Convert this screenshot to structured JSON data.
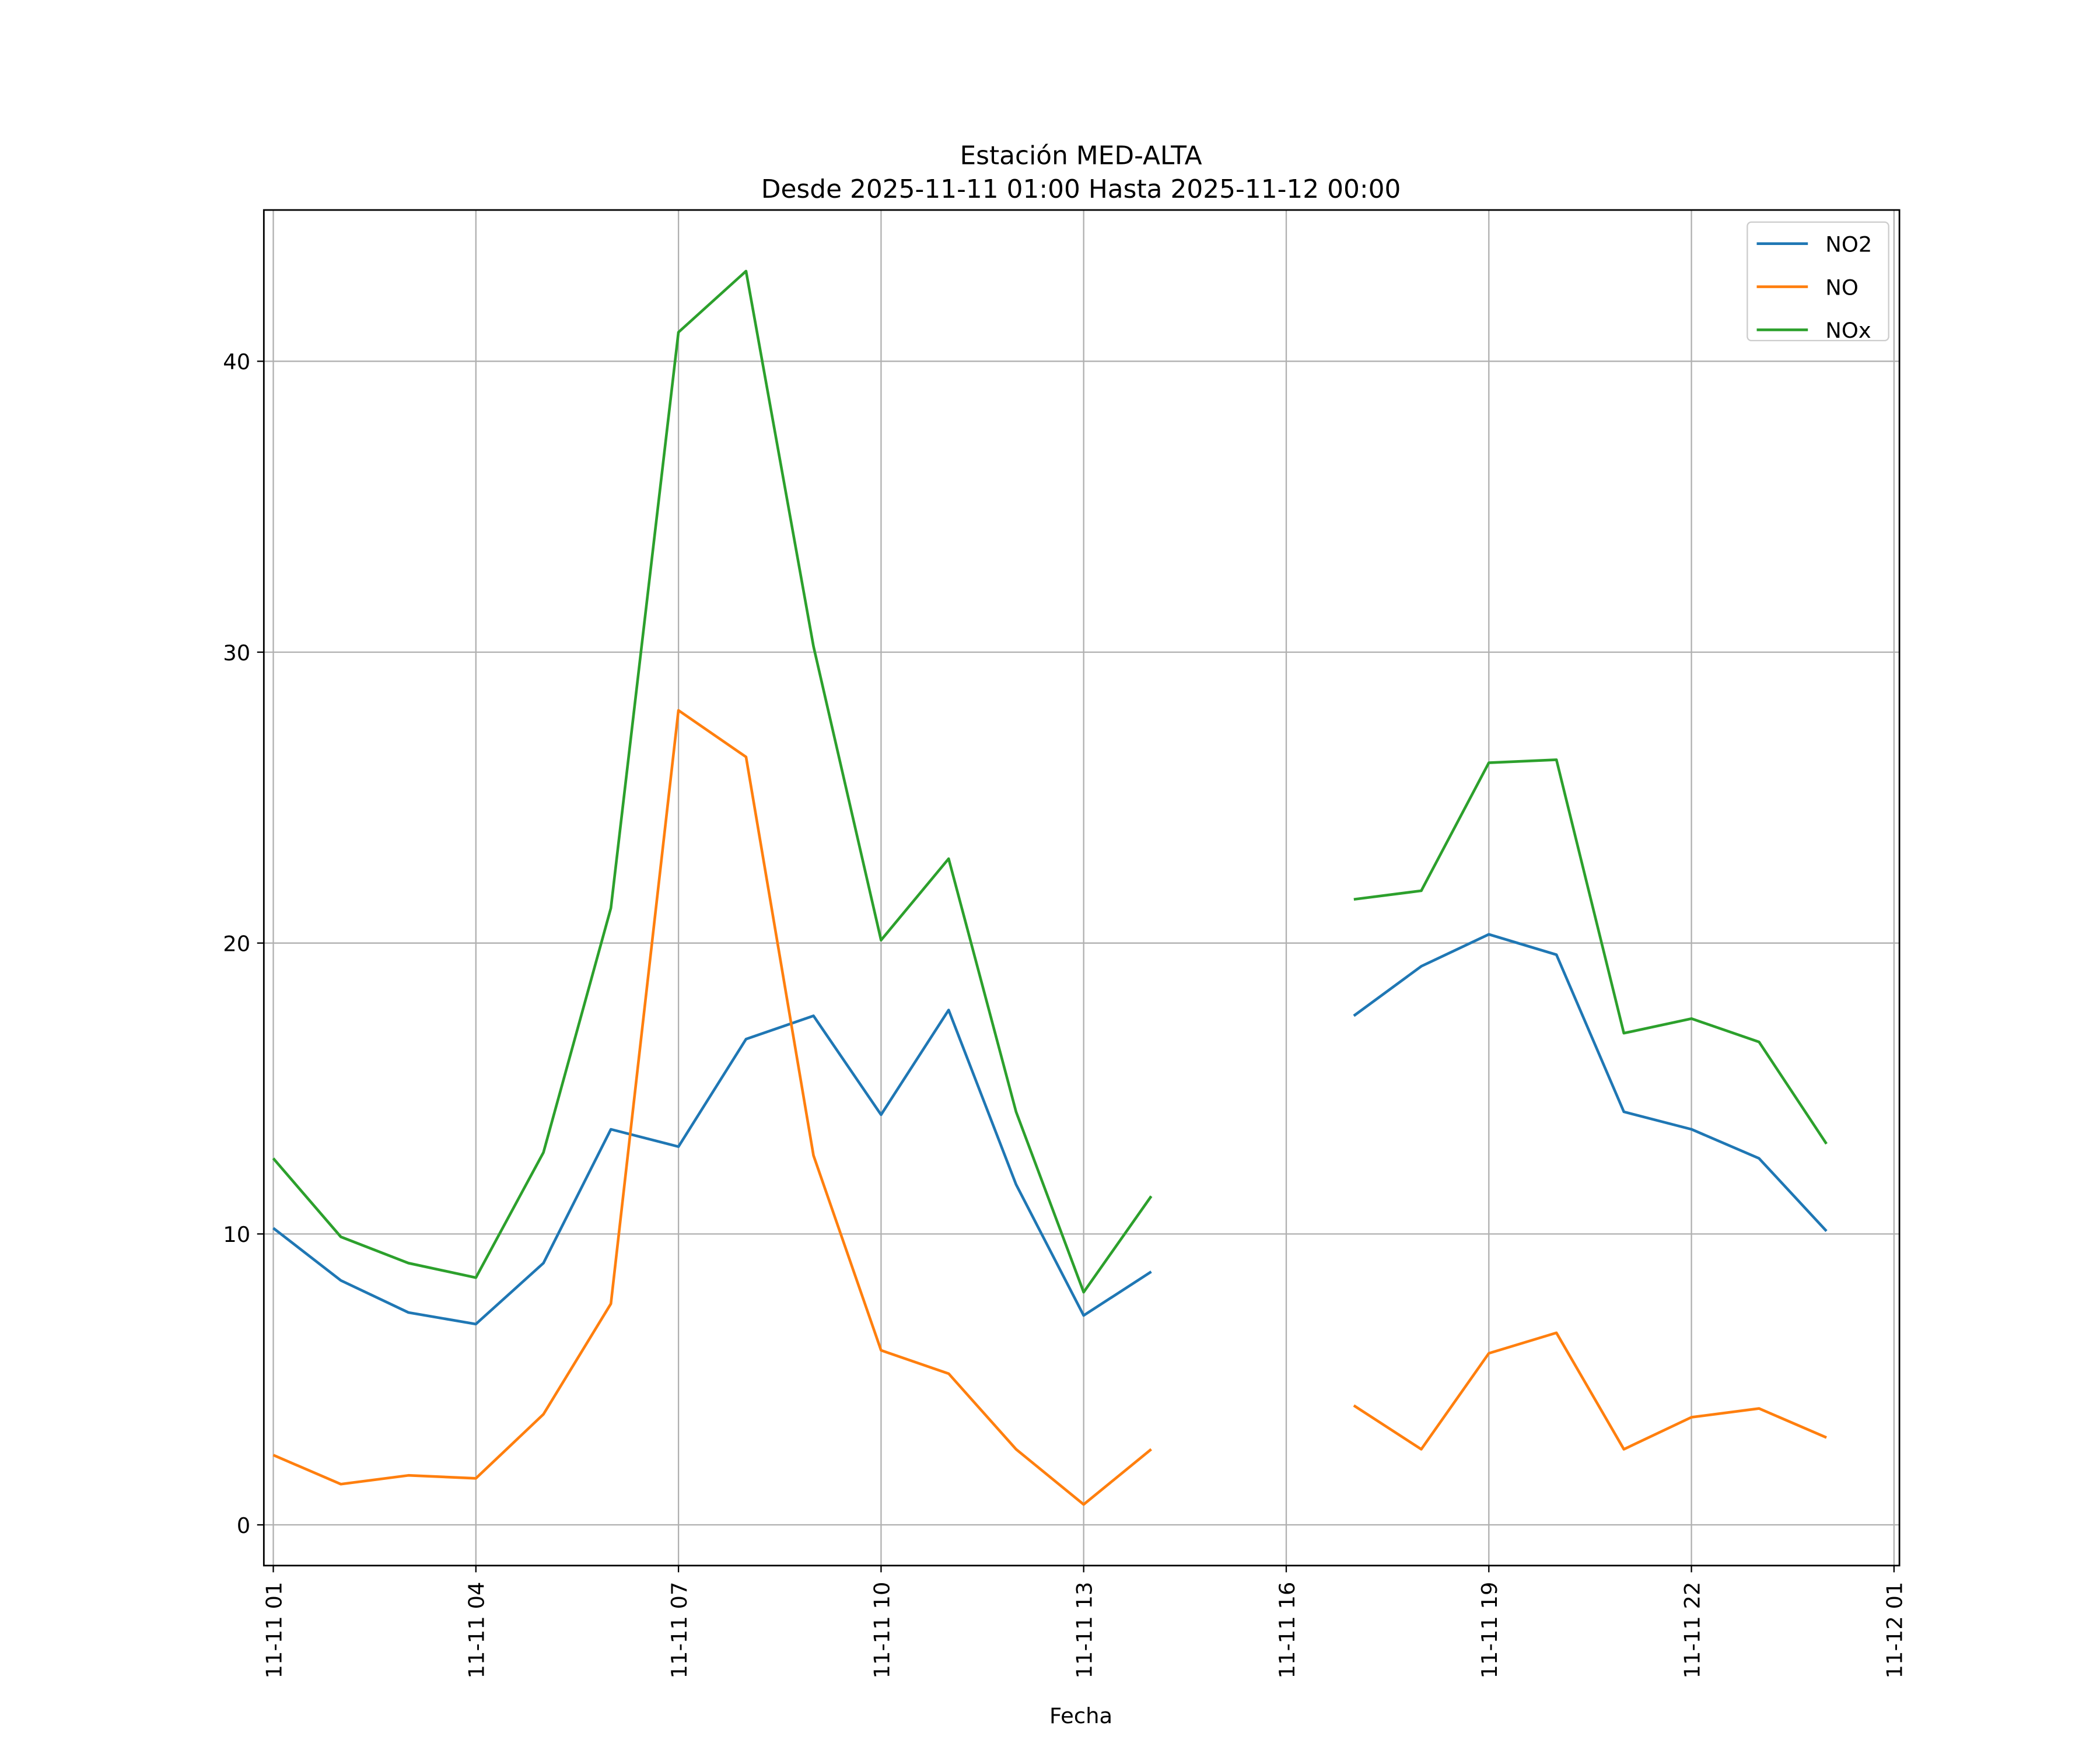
{
  "chart_data": {
    "type": "line",
    "title": "Estación MED-ALTA",
    "subtitle": "Desde 2025-11-11 01:00 Hasta 2025-11-12 00:00",
    "xlabel": "Fecha",
    "ylabel": "",
    "x_hours": [
      1,
      2,
      3,
      4,
      5,
      6,
      7,
      8,
      9,
      10,
      11,
      12,
      13,
      14,
      15,
      16,
      17,
      18,
      19,
      20,
      21,
      22,
      23,
      24
    ],
    "xlim_hours": [
      0.86,
      25.08
    ],
    "ylim": [
      -1.4,
      45.2
    ],
    "yticks": [
      0,
      10,
      20,
      30,
      40
    ],
    "xticks": [
      {
        "hour": 1,
        "label": "11-11 01"
      },
      {
        "hour": 4,
        "label": "11-11 04"
      },
      {
        "hour": 7,
        "label": "11-11 07"
      },
      {
        "hour": 10,
        "label": "11-11 10"
      },
      {
        "hour": 13,
        "label": "11-11 13"
      },
      {
        "hour": 16,
        "label": "11-11 16"
      },
      {
        "hour": 19,
        "label": "11-11 19"
      },
      {
        "hour": 22,
        "label": "11-11 22"
      },
      {
        "hour": 25,
        "label": "11-12 01"
      }
    ],
    "grid": true,
    "legend_position": "top-right",
    "series": [
      {
        "name": "NO2",
        "color": "#1f77b4",
        "values": [
          10.2,
          8.4,
          7.3,
          6.9,
          9.0,
          13.6,
          13.0,
          16.7,
          17.5,
          14.1,
          17.7,
          11.7,
          7.2,
          8.7,
          null,
          null,
          17.5,
          19.2,
          20.3,
          19.6,
          14.2,
          13.6,
          12.6,
          10.1
        ]
      },
      {
        "name": "NO",
        "color": "#ff7f0e",
        "values": [
          2.4,
          1.4,
          1.7,
          1.6,
          3.8,
          7.6,
          28.0,
          26.4,
          12.7,
          6.0,
          5.2,
          2.6,
          0.7,
          2.6,
          null,
          null,
          4.1,
          2.6,
          5.9,
          6.6,
          2.6,
          3.7,
          4.0,
          3.0
        ]
      },
      {
        "name": "NOx",
        "color": "#2ca02c",
        "values": [
          12.6,
          9.9,
          9.0,
          8.5,
          12.8,
          21.2,
          41.0,
          43.1,
          30.2,
          20.1,
          22.9,
          14.2,
          8.0,
          11.3,
          null,
          null,
          21.5,
          21.8,
          26.2,
          26.3,
          16.9,
          17.4,
          16.6,
          13.1
        ]
      }
    ]
  }
}
